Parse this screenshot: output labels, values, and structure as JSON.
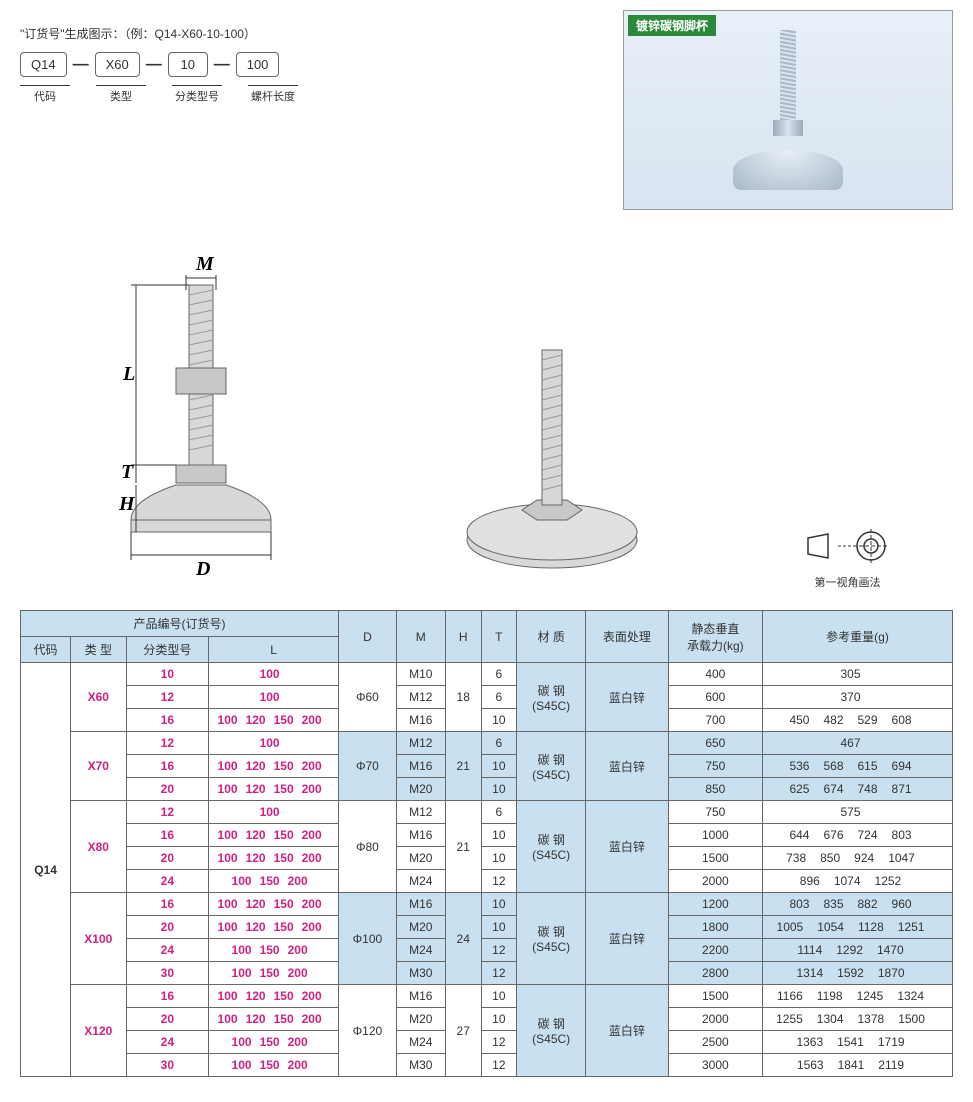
{
  "order": {
    "title": "\"订货号\"生成图示：（例：Q14-X60-10-100）",
    "boxes": [
      "Q14",
      "X60",
      "10",
      "100"
    ],
    "labels": [
      "代码",
      "类型",
      "分类型号",
      "螺杆长度"
    ]
  },
  "product_badge": "镀锌碳钢脚杯",
  "projection_label": "第一视角画法",
  "diagram_labels": {
    "M": "M",
    "L": "L",
    "T": "T",
    "H": "H",
    "D": "D"
  },
  "table": {
    "header_group": "产品编号(订货号)",
    "headers": [
      "代码",
      "类 型",
      "分类型号",
      "L",
      "D",
      "M",
      "H",
      "T",
      "材 质",
      "表面处理",
      "静态垂直\n承载力(kg)",
      "参考重量(g)"
    ],
    "code": "Q14",
    "material": "碳 钢\n(S45C)",
    "surface": "蓝白锌",
    "groups": [
      {
        "type": "X60",
        "D": "Φ60",
        "H": "18",
        "rows": [
          {
            "sub": "10",
            "L": [
              "100"
            ],
            "M": "M10",
            "T": "6",
            "load": "400",
            "wt": [
              "305"
            ]
          },
          {
            "sub": "12",
            "L": [
              "100"
            ],
            "M": "M12",
            "T": "6",
            "load": "600",
            "wt": [
              "370"
            ]
          },
          {
            "sub": "16",
            "L": [
              "100",
              "120",
              "150",
              "200"
            ],
            "M": "M16",
            "T": "10",
            "load": "700",
            "wt": [
              "450",
              "482",
              "529",
              "608"
            ]
          }
        ]
      },
      {
        "type": "X70",
        "D": "Φ70",
        "H": "21",
        "rows": [
          {
            "sub": "12",
            "L": [
              "100"
            ],
            "M": "M12",
            "T": "6",
            "load": "650",
            "wt": [
              "467"
            ]
          },
          {
            "sub": "16",
            "L": [
              "100",
              "120",
              "150",
              "200"
            ],
            "M": "M16",
            "T": "10",
            "load": "750",
            "wt": [
              "536",
              "568",
              "615",
              "694"
            ]
          },
          {
            "sub": "20",
            "L": [
              "100",
              "120",
              "150",
              "200"
            ],
            "M": "M20",
            "T": "10",
            "load": "850",
            "wt": [
              "625",
              "674",
              "748",
              "871"
            ]
          }
        ]
      },
      {
        "type": "X80",
        "D": "Φ80",
        "H": "21",
        "rows": [
          {
            "sub": "12",
            "L": [
              "100"
            ],
            "M": "M12",
            "T": "6",
            "load": "750",
            "wt": [
              "575"
            ]
          },
          {
            "sub": "16",
            "L": [
              "100",
              "120",
              "150",
              "200"
            ],
            "M": "M16",
            "T": "10",
            "load": "1000",
            "wt": [
              "644",
              "676",
              "724",
              "803"
            ]
          },
          {
            "sub": "20",
            "L": [
              "100",
              "120",
              "150",
              "200"
            ],
            "M": "M20",
            "T": "10",
            "load": "1500",
            "wt": [
              "738",
              "850",
              "924",
              "1047"
            ]
          },
          {
            "sub": "24",
            "L": [
              "100",
              "150",
              "200"
            ],
            "M": "M24",
            "T": "12",
            "load": "2000",
            "wt": [
              "896",
              "1074",
              "1252"
            ]
          }
        ]
      },
      {
        "type": "X100",
        "D": "Φ100",
        "H": "24",
        "rows": [
          {
            "sub": "16",
            "L": [
              "100",
              "120",
              "150",
              "200"
            ],
            "M": "M16",
            "T": "10",
            "load": "1200",
            "wt": [
              "803",
              "835",
              "882",
              "960"
            ]
          },
          {
            "sub": "20",
            "L": [
              "100",
              "120",
              "150",
              "200"
            ],
            "M": "M20",
            "T": "10",
            "load": "1800",
            "wt": [
              "1005",
              "1054",
              "1128",
              "1251"
            ]
          },
          {
            "sub": "24",
            "L": [
              "100",
              "150",
              "200"
            ],
            "M": "M24",
            "T": "12",
            "load": "2200",
            "wt": [
              "1114",
              "1292",
              "1470"
            ]
          },
          {
            "sub": "30",
            "L": [
              "100",
              "150",
              "200"
            ],
            "M": "M30",
            "T": "12",
            "load": "2800",
            "wt": [
              "1314",
              "1592",
              "1870"
            ]
          }
        ]
      },
      {
        "type": "X120",
        "D": "Φ120",
        "H": "27",
        "rows": [
          {
            "sub": "16",
            "L": [
              "100",
              "120",
              "150",
              "200"
            ],
            "M": "M16",
            "T": "10",
            "load": "1500",
            "wt": [
              "1166",
              "1198",
              "1245",
              "1324"
            ]
          },
          {
            "sub": "20",
            "L": [
              "100",
              "120",
              "150",
              "200"
            ],
            "M": "M20",
            "T": "10",
            "load": "2000",
            "wt": [
              "1255",
              "1304",
              "1378",
              "1500"
            ]
          },
          {
            "sub": "24",
            "L": [
              "100",
              "150",
              "200"
            ],
            "M": "M24",
            "T": "12",
            "load": "2500",
            "wt": [
              "1363",
              "1541",
              "1719"
            ]
          },
          {
            "sub": "30",
            "L": [
              "100",
              "150",
              "200"
            ],
            "M": "M30",
            "T": "12",
            "load": "3000",
            "wt": [
              "1563",
              "1841",
              "2119"
            ]
          }
        ]
      }
    ]
  },
  "colors": {
    "header_bg": "#c8e0f0",
    "pink": "#d02080",
    "border": "#666666",
    "badge": "#2a8a3a"
  }
}
